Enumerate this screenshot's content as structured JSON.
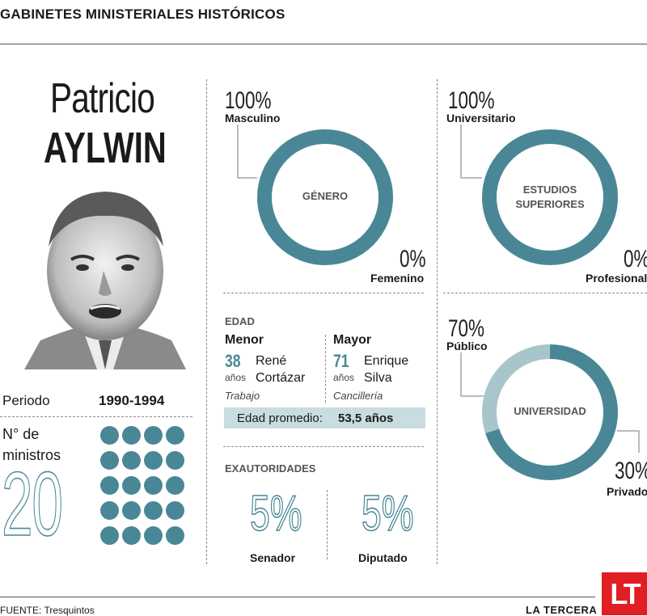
{
  "header": {
    "title": "GABINETES MINISTERIALES HISTÓRICOS"
  },
  "president": {
    "first_name": "Patricio",
    "last_name": "AYLWIN"
  },
  "periodo": {
    "label": "Periodo",
    "value": "1990-1994"
  },
  "ministros": {
    "label_line1": "N° de",
    "label_line2": "ministros",
    "count": "20",
    "count_value": 20
  },
  "colors": {
    "teal": "#4a8796",
    "light_teal": "#a9c5cc",
    "bar": "#c9dde1",
    "logo_red": "#e01e23"
  },
  "edad": {
    "title": "EDAD",
    "menor": {
      "label": "Menor",
      "age": "38",
      "unit": "años",
      "name_line1": "René",
      "name_line2": "Cortázar",
      "cartera": "Trabajo"
    },
    "mayor": {
      "label": "Mayor",
      "age": "71",
      "unit": "años",
      "name_line1": "Enrique",
      "name_line2": "Silva",
      "cartera": "Cancillería"
    },
    "promedio_label": "Edad promedio:",
    "promedio_value": "53,5 años"
  },
  "exautoridades": {
    "title": "EXAUTORIDADES",
    "senador": {
      "pct": "5%",
      "label": "Senador"
    },
    "diputado": {
      "pct": "5%",
      "label": "Diputado"
    }
  },
  "chart_data": [
    {
      "type": "pie",
      "center_label": "GÉNERO",
      "slices": [
        {
          "label": "Masculino",
          "pct_text": "100%",
          "value": 100
        },
        {
          "label": "Femenino",
          "pct_text": "0%",
          "value": 0
        }
      ]
    },
    {
      "type": "pie",
      "center_label_line1": "ESTUDIOS",
      "center_label_line2": "SUPERIORES",
      "slices": [
        {
          "label": "Universitario",
          "pct_text": "100%",
          "value": 100
        },
        {
          "label": "Profesional",
          "pct_text": "0%",
          "value": 0
        }
      ]
    },
    {
      "type": "pie",
      "center_label": "UNIVERSIDAD",
      "slices": [
        {
          "label": "Público",
          "pct_text": "70%",
          "value": 70
        },
        {
          "label": "Privado",
          "pct_text": "30%",
          "value": 30
        }
      ]
    }
  ],
  "footer": {
    "source": "FUENTE: Tresquintos",
    "publisher": "LA TERCERA",
    "logo": "LT"
  }
}
